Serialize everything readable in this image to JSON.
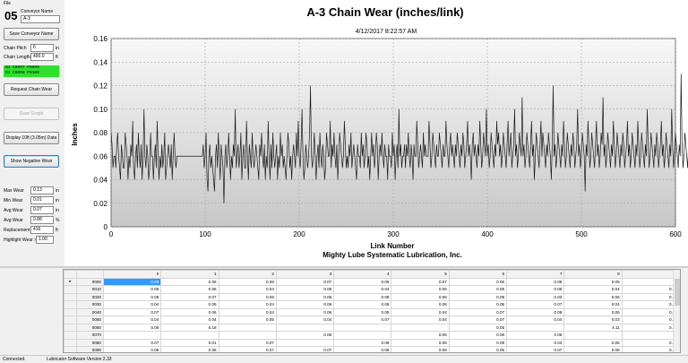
{
  "menu": {
    "file": "File"
  },
  "conveyor": {
    "number": "05",
    "name_label": "Conveyor Name",
    "name_value": "A-3",
    "save_button": "Save Conveyor Name",
    "pitch_label": "Chain Pitch",
    "pitch_value": "6",
    "pitch_unit": "in",
    "length_label": "Chain Length",
    "length_value": "400.0",
    "length_unit": "ft"
  },
  "status": {
    "line1": "N1  C0007   P0600",
    "line2": "D1  C0000   P0100"
  },
  "buttons": {
    "request": "Request Chain Wear",
    "save_graph": "Save Graph",
    "display": "Display 10ft (3.05m) Data",
    "show_negative": "Show Negative Wear"
  },
  "stats": {
    "max_label": "Max Wear",
    "max_value": "0.13",
    "max_unit": "in",
    "min_label": "Min Wear",
    "min_value": "0.01",
    "min_unit": "in",
    "avg_label": "Avg Wear",
    "avg_value": "0.07",
    "avg_unit": "in",
    "avgpct_label": "Avg Wear",
    "avgpct_value": "0.88",
    "avgpct_unit": "%",
    "repl_label": "Replacement",
    "repl_value": "416",
    "repl_unit": "ft",
    "highlight_label": "Highlight Wear >",
    "highlight_value": "1.00"
  },
  "chart_data": {
    "type": "line",
    "title": "A-3 Chain Wear (inches/link)",
    "subtitle": "4/12/2017 8:22:57 AM",
    "xlabel": "Link Number",
    "ylabel": "Inches",
    "footer": "Mighty Lube Systematic Lubrication, Inc.",
    "xlim": [
      0,
      600
    ],
    "ylim": [
      0,
      0.16
    ],
    "xticks": [
      "0",
      "100",
      "200",
      "300",
      "400",
      "500",
      "600"
    ],
    "yticks": [
      "0",
      "0.02",
      "0.04",
      "0.06",
      "0.08",
      "0.10",
      "0.12",
      "0.14",
      "0.16"
    ],
    "grid": true,
    "series": [
      {
        "x_start": 0,
        "x_step": 1,
        "values": [
          0.08,
          0.07,
          0.05,
          0.06,
          0.06,
          0.05,
          0.07,
          0.08,
          0.06,
          0.05,
          0.04,
          0.07,
          0.06,
          0.05,
          0.05,
          0.08,
          0.07,
          0.06,
          0.04,
          0.06,
          0.05,
          0.07,
          0.06,
          0.09,
          0.05,
          0.04,
          0.06,
          0.07,
          0.05,
          0.08,
          0.06,
          0.05,
          0.07,
          0.04,
          0.06,
          0.1,
          0.06,
          0.05,
          0.07,
          0.06,
          0.04,
          0.05,
          0.08,
          0.06,
          0.06,
          0.04,
          0.06,
          0.07,
          0.05,
          0.09,
          0.06,
          0.04,
          0.06,
          0.05,
          0.07,
          0.05,
          0.06,
          0.08,
          0.04,
          0.05,
          0.06,
          0.07,
          0.06,
          0.05,
          0.07,
          0.04,
          0.06,
          0.08,
          0.06,
          0.05,
          0.06,
          0.06,
          0.06,
          0.06,
          0.06,
          0.06,
          0.06,
          0.06,
          0.06,
          0.06,
          0.06,
          0.06,
          0.06,
          0.06,
          0.06,
          0.06,
          0.06,
          0.06,
          0.06,
          0.06,
          0.06,
          0.06,
          0.06,
          0.06,
          0.06,
          0.06,
          0.06,
          0.06,
          0.07,
          0.05,
          0.06,
          0.08,
          0.04,
          0.03,
          0.06,
          0.07,
          0.05,
          0.06,
          0.05,
          0.04,
          0.03,
          0.06,
          0.07,
          0.05,
          0.08,
          0.06,
          0.04,
          0.07,
          0.06,
          0.05,
          0.02,
          0.06,
          0.07,
          0.05,
          0.06,
          0.08,
          0.06,
          0.04,
          0.06,
          0.05,
          0.07,
          0.06,
          0.1,
          0.05,
          0.06,
          0.07,
          0.05,
          0.06,
          0.08,
          0.04,
          0.06,
          0.07,
          0.05,
          0.05,
          0.09,
          0.06,
          0.04,
          0.07,
          0.06,
          0.05,
          0.08,
          0.06,
          0.05,
          0.06,
          0.07,
          0.06,
          0.05,
          0.04,
          0.07,
          0.06,
          0.08,
          0.06,
          0.05,
          0.07,
          0.04,
          0.06,
          0.05,
          0.09,
          0.06,
          0.04,
          0.07,
          0.05,
          0.08,
          0.06,
          0.05,
          0.06,
          0.07,
          0.04,
          0.06,
          0.05,
          0.08,
          0.06,
          0.07,
          0.05,
          0.06,
          0.05,
          0.04,
          0.06,
          0.08,
          0.07,
          0.05,
          0.06,
          0.04,
          0.06,
          0.07,
          0.06,
          0.05,
          0.08,
          0.06,
          0.09,
          0.06,
          0.05,
          0.07,
          0.1,
          0.06,
          0.04,
          0.05,
          0.07,
          0.06,
          0.05,
          0.06,
          0.08,
          0.12,
          0.06,
          0.05,
          0.06,
          0.08,
          0.06,
          0.04,
          0.06,
          0.07,
          0.05,
          0.08,
          0.06,
          0.05,
          0.07,
          0.06,
          0.04,
          0.05,
          0.08,
          0.07,
          0.06,
          0.06,
          0.09,
          0.05,
          0.07,
          0.06,
          0.08,
          0.06,
          0.05,
          0.07,
          0.04,
          0.06,
          0.08,
          0.07,
          0.06,
          0.05,
          0.06,
          0.09,
          0.07,
          0.05,
          0.06,
          0.05,
          0.07,
          0.06,
          0.08,
          0.05,
          0.06,
          0.07,
          0.06,
          0.05,
          0.04,
          0.07,
          0.06,
          0.06,
          0.05,
          0.08,
          0.06,
          0.07,
          0.05,
          0.06,
          0.08,
          0.07,
          0.05,
          0.06,
          0.04,
          0.06,
          0.08,
          0.06,
          0.07,
          0.05,
          0.06,
          0.08,
          0.07,
          0.04,
          0.06,
          0.07,
          0.06,
          0.08,
          0.06,
          0.05,
          0.07,
          0.06,
          0.06,
          0.04,
          0.07,
          0.06,
          0.06,
          0.05,
          0.08,
          0.06,
          0.07,
          0.04,
          0.06,
          0.07,
          0.05,
          0.1,
          0.06,
          0.07,
          0.05,
          0.06,
          0.06,
          0.07,
          0.05,
          0.07,
          0.06,
          0.08,
          0.06,
          0.05,
          0.07,
          0.06,
          0.04,
          0.07,
          0.06,
          0.06,
          0.09,
          0.07,
          0.05,
          0.06,
          0.07,
          0.06,
          0.05,
          0.08,
          0.06,
          0.07,
          0.06,
          0.06,
          0.06,
          0.09,
          0.07,
          0.05,
          0.06,
          0.08,
          0.07,
          0.06,
          0.05,
          0.07,
          0.06,
          0.06,
          0.08,
          0.07,
          0.06,
          0.05,
          0.07,
          0.06,
          0.06,
          0.09,
          0.07,
          0.06,
          0.05,
          0.07,
          0.08,
          0.06,
          0.07,
          0.06,
          0.05,
          0.07,
          0.06,
          0.08,
          0.07,
          0.06,
          0.05,
          0.07,
          0.06,
          0.08,
          0.07,
          0.05,
          0.06,
          0.07,
          0.09,
          0.06,
          0.07,
          0.06,
          0.04,
          0.07,
          0.08,
          0.06,
          0.07,
          0.06,
          0.05,
          0.07,
          0.06,
          0.09,
          0.07,
          0.05,
          0.06,
          0.08,
          0.07,
          0.06,
          0.1,
          0.06,
          0.07,
          0.05,
          0.06,
          0.08,
          0.07,
          0.06,
          0.05,
          0.07,
          0.06,
          0.09,
          0.07,
          0.08,
          0.06,
          0.07,
          0.05,
          0.06,
          0.08,
          0.07,
          0.06,
          0.05,
          0.07,
          0.09,
          0.06,
          0.07,
          0.08,
          0.05,
          0.06,
          0.07,
          0.1,
          0.06,
          0.07,
          0.05,
          0.06,
          0.08,
          0.07,
          0.06,
          0.11,
          0.06,
          0.07,
          0.05,
          0.06,
          0.08,
          0.07,
          0.06,
          0.05,
          0.07,
          0.09,
          0.06,
          0.07,
          0.04,
          0.06,
          0.08,
          0.07,
          0.06,
          0.05,
          0.07,
          0.09,
          0.06,
          0.08,
          0.07,
          0.06,
          0.05,
          0.07,
          0.06,
          0.08,
          0.07,
          0.06,
          0.04,
          0.07,
          0.12,
          0.06,
          0.07,
          0.05,
          0.06,
          0.08,
          0.07,
          0.06,
          0.05,
          0.07,
          0.06,
          0.09,
          0.07,
          0.05,
          0.06,
          0.08,
          0.07,
          0.06,
          0.05,
          0.07,
          0.06,
          0.08,
          0.07,
          0.05,
          0.06,
          0.07,
          0.1,
          0.06,
          0.07,
          0.05,
          0.06,
          0.08,
          0.07,
          0.06,
          0.03,
          0.07,
          0.06,
          0.09,
          0.07,
          0.05,
          0.06,
          0.08,
          0.07,
          0.06,
          0.05,
          0.07,
          0.09,
          0.06,
          0.07,
          0.05,
          0.06,
          0.08,
          0.07,
          0.11,
          0.06,
          0.07,
          0.05,
          0.06,
          0.08,
          0.07,
          0.06,
          0.05,
          0.07,
          0.06,
          0.09,
          0.07,
          0.05,
          0.06,
          0.08,
          0.07,
          0.06,
          0.05,
          0.07,
          0.06,
          0.08,
          0.07,
          0.05,
          0.06,
          0.07,
          0.09,
          0.06,
          0.07,
          0.05,
          0.06,
          0.08,
          0.07,
          0.06,
          0.05,
          0.07,
          0.06,
          0.09,
          0.07,
          0.05,
          0.06,
          0.08,
          0.07,
          0.06,
          0.05,
          0.07,
          0.06,
          0.1,
          0.07,
          0.05,
          0.06,
          0.08,
          0.07,
          0.06,
          0.05,
          0.07,
          0.06,
          0.08,
          0.07,
          0.05,
          0.06,
          0.07,
          0.09,
          0.06,
          0.07,
          0.05,
          0.06,
          0.08,
          0.07,
          0.06,
          0.05,
          0.07,
          0.06,
          0.1,
          0.07,
          0.05,
          0.06,
          0.08,
          0.07,
          0.06,
          0.05,
          0.07,
          0.06,
          0.13,
          0.07,
          0.05,
          0.06,
          0.08,
          0.07,
          0.06,
          0.05,
          0.07,
          0.06,
          0.09,
          0.07,
          0.05,
          0.06,
          0.08,
          0.07,
          0.06,
          0.05,
          0.07,
          0.06,
          0.08,
          0.07,
          0.05,
          0.06,
          0.07,
          0.09,
          0.06,
          0.07,
          0.05,
          0.06,
          0.08,
          0.07,
          0.06,
          0.05,
          0.07,
          0.06,
          0.1,
          0.07,
          0.05,
          0.06,
          0.08,
          0.07,
          0.06,
          0.05,
          0.07,
          0.06,
          0.09,
          0.07,
          0.05,
          0.06,
          0.08,
          0.07,
          0.06,
          0.05,
          0.07,
          0.06,
          0.08,
          0.07,
          0.05,
          0.06,
          0.07
        ]
      }
    ]
  },
  "grid": {
    "columns": [
      "",
      "0",
      "1",
      "2",
      "3",
      "4",
      "5",
      "6",
      "7",
      "8",
      "9"
    ],
    "rows": [
      [
        "0000",
        "0.08",
        "0.06",
        "0.06",
        "0.07",
        "0.06",
        "0.07",
        "0.05",
        "0.05",
        "0.05",
        ""
      ],
      [
        "0010",
        "0.05",
        "0.06",
        "0.04",
        "0.05",
        "0.04",
        "0.05",
        "0.05",
        "0.06",
        "0.04",
        "0.05"
      ],
      [
        "0020",
        "0.06",
        "0.07",
        "0.06",
        "0.06",
        "0.08",
        "0.06",
        "0.09",
        "0.03",
        "0.06",
        "0.06"
      ],
      [
        "0030",
        "0.04",
        "0.05",
        "0.04",
        "0.06",
        "0.06",
        "0.08",
        "0.05",
        "0.07",
        "0.04",
        "0.06"
      ],
      [
        "0040",
        "0.07",
        "0.06",
        "0.04",
        "0.06",
        "0.05",
        "0.04",
        "0.07",
        "0.08",
        "0.06",
        "0.05"
      ],
      [
        "0050",
        "0.04",
        "0.04",
        "0.05",
        "0.04",
        "0.07",
        "0.04",
        "0.07",
        "0.04",
        "0.03",
        "0.04"
      ],
      [
        "0060",
        "0.05",
        "6.18",
        "",
        "",
        "",
        "",
        "0.05",
        "",
        "4.11",
        "0.06"
      ],
      [
        "0070",
        "",
        "",
        "",
        "0.06",
        "",
        "0.06",
        "0.06",
        "0.06",
        "",
        ""
      ],
      [
        "0080",
        "0.07",
        "0.01",
        "0.07",
        "",
        "0.09",
        "0.08",
        "0.09",
        "0.03",
        "0.06",
        "0.05"
      ],
      [
        "0090",
        "0.08",
        "0.06",
        "0.07",
        "0.07",
        "0.06",
        "0.06",
        "0.05",
        "0.07",
        "0.08",
        "0.06"
      ]
    ]
  },
  "statusbar": {
    "left": "Connected.",
    "version": "Lubricator Software Version 2.33"
  }
}
